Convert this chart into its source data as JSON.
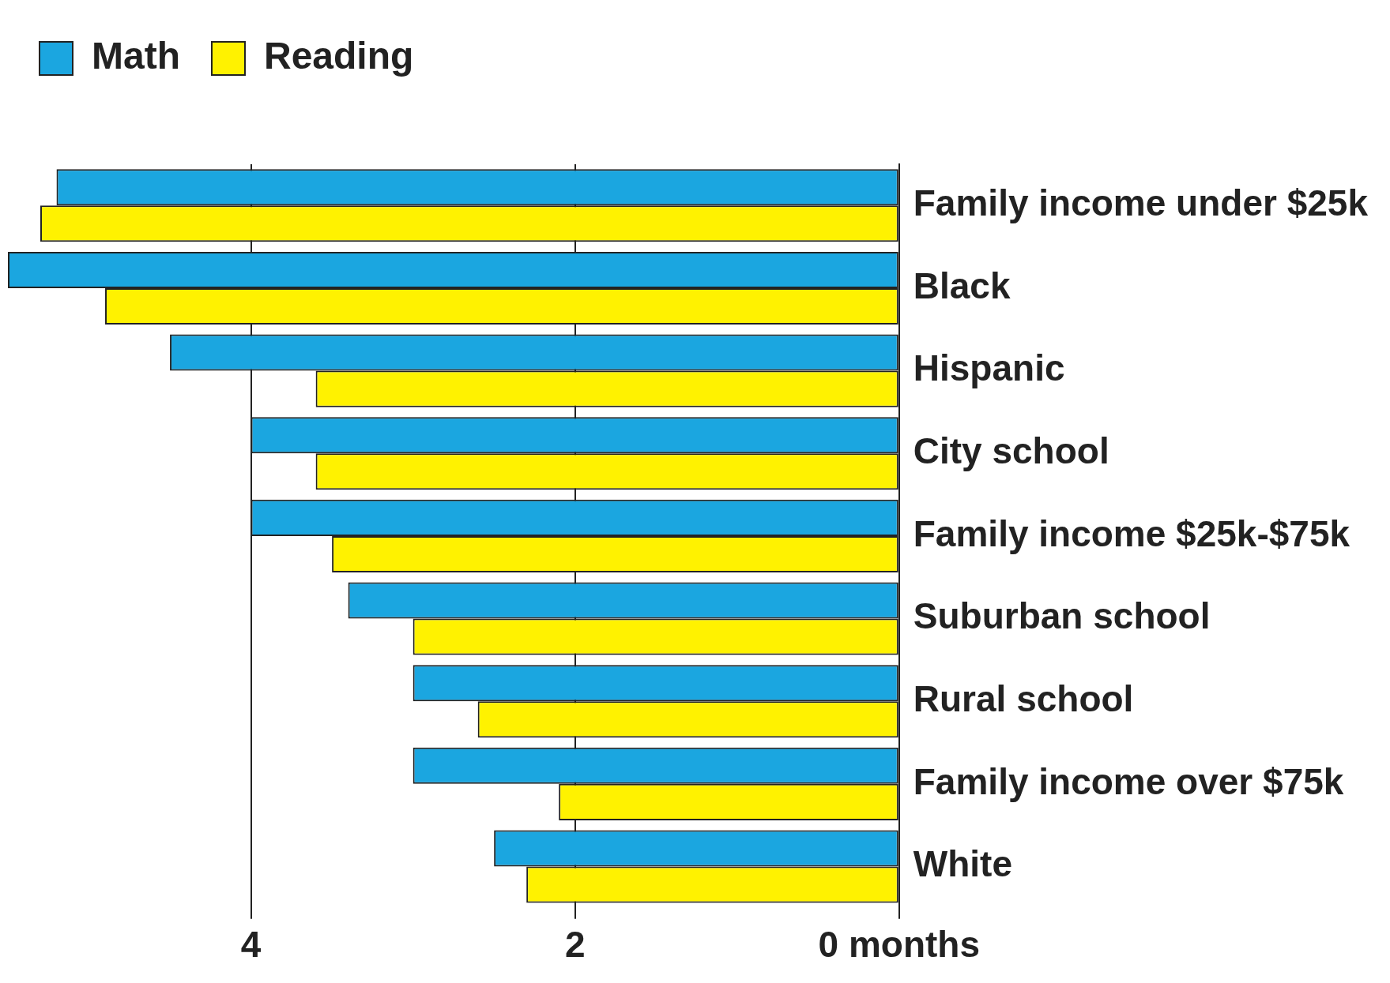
{
  "chart_data": {
    "type": "bar",
    "orientation": "horizontal",
    "categories": [
      "Family income under $25k",
      "Black",
      "Hispanic",
      "City school",
      "Family income $25k-$75k",
      "Suburban school",
      "Rural school",
      "Family income over $75k",
      "White"
    ],
    "series": [
      {
        "name": "Math",
        "color": "#1ba6e0",
        "values": [
          5.2,
          5.5,
          4.5,
          4.0,
          4.0,
          3.4,
          3.0,
          3.0,
          2.5
        ]
      },
      {
        "name": "Reading",
        "color": "#fff200",
        "values": [
          5.3,
          4.9,
          3.6,
          3.6,
          3.5,
          3.0,
          2.6,
          2.1,
          2.3
        ]
      }
    ],
    "xlim": [
      5.5,
      0
    ],
    "xticks": [
      4,
      2,
      {
        "value": 0,
        "label": "0 months"
      }
    ],
    "grid": "x",
    "legend": "top left"
  }
}
